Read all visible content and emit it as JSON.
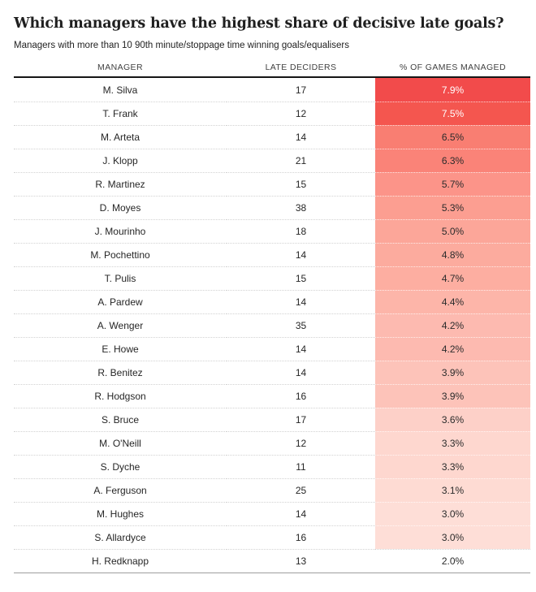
{
  "title": "Which managers have the highest share of decisive late goals?",
  "subtitle": "Managers with more than 10 90th minute/stoppage time winning goals/equalisers",
  "table": {
    "columns": [
      "MANAGER",
      "LATE DECIDERS",
      "% OF GAMES MANAGED"
    ],
    "rows": [
      {
        "manager": "M. Silva",
        "late_deciders": "17",
        "pct": "7.9%",
        "bg": "#f24b4b",
        "fg": "#ffffff"
      },
      {
        "manager": "T. Frank",
        "late_deciders": "12",
        "pct": "7.5%",
        "bg": "#f4564f",
        "fg": "#ffffff"
      },
      {
        "manager": "M. Arteta",
        "late_deciders": "14",
        "pct": "6.5%",
        "bg": "#f97e72",
        "fg": "#2b2b2b"
      },
      {
        "manager": "J. Klopp",
        "late_deciders": "21",
        "pct": "6.3%",
        "bg": "#fa8378",
        "fg": "#2b2b2b"
      },
      {
        "manager": "R. Martinez",
        "late_deciders": "15",
        "pct": "5.7%",
        "bg": "#fc9489",
        "fg": "#2b2b2b"
      },
      {
        "manager": "D. Moyes",
        "late_deciders": "38",
        "pct": "5.3%",
        "bg": "#fc9e91",
        "fg": "#2b2b2b"
      },
      {
        "manager": "J. Mourinho",
        "late_deciders": "18",
        "pct": "5.0%",
        "bg": "#fca699",
        "fg": "#2b2b2b"
      },
      {
        "manager": "M. Pochettino",
        "late_deciders": "14",
        "pct": "4.8%",
        "bg": "#fcab9e",
        "fg": "#2b2b2b"
      },
      {
        "manager": "T. Pulis",
        "late_deciders": "15",
        "pct": "4.7%",
        "bg": "#fdaea1",
        "fg": "#2b2b2b"
      },
      {
        "manager": "A. Pardew",
        "late_deciders": "14",
        "pct": "4.4%",
        "bg": "#fdb5a9",
        "fg": "#2b2b2b"
      },
      {
        "manager": "A. Wenger",
        "late_deciders": "35",
        "pct": "4.2%",
        "bg": "#fdbab0",
        "fg": "#2b2b2b"
      },
      {
        "manager": "E. Howe",
        "late_deciders": "14",
        "pct": "4.2%",
        "bg": "#fdbab0",
        "fg": "#2b2b2b"
      },
      {
        "manager": "R. Benitez",
        "late_deciders": "14",
        "pct": "3.9%",
        "bg": "#fdc3b9",
        "fg": "#2b2b2b"
      },
      {
        "manager": "R. Hodgson",
        "late_deciders": "16",
        "pct": "3.9%",
        "bg": "#fdc3b9",
        "fg": "#2b2b2b"
      },
      {
        "manager": "S. Bruce",
        "late_deciders": "17",
        "pct": "3.6%",
        "bg": "#fdd0c8",
        "fg": "#2b2b2b"
      },
      {
        "manager": "M. O'Neill",
        "late_deciders": "12",
        "pct": "3.3%",
        "bg": "#fed7cf",
        "fg": "#2b2b2b"
      },
      {
        "manager": "S. Dyche",
        "late_deciders": "11",
        "pct": "3.3%",
        "bg": "#fed7cf",
        "fg": "#2b2b2b"
      },
      {
        "manager": "A. Ferguson",
        "late_deciders": "25",
        "pct": "3.1%",
        "bg": "#fedbd3",
        "fg": "#2b2b2b"
      },
      {
        "manager": "M. Hughes",
        "late_deciders": "14",
        "pct": "3.0%",
        "bg": "#feded7",
        "fg": "#2b2b2b"
      },
      {
        "manager": "S. Allardyce",
        "late_deciders": "16",
        "pct": "3.0%",
        "bg": "#feded7",
        "fg": "#2b2b2b"
      },
      {
        "manager": "H. Redknapp",
        "late_deciders": "13",
        "pct": "2.0%",
        "bg": null,
        "fg": "#2b2b2b"
      }
    ]
  },
  "colors": {
    "heat_high": "#f24b4b",
    "heat_low": "#ffffff",
    "header_rule": "#161616",
    "bottom_rule": "#9e9e9e",
    "row_divider": "#d2d2d2",
    "text": "#1f1f1f"
  },
  "chart_data": {
    "type": "table",
    "title": "Which managers have the highest share of decisive late goals?",
    "subtitle": "Managers with more than 10 90th minute/stoppage time winning goals/equalisers",
    "columns": [
      "Manager",
      "Late deciders",
      "% of games managed"
    ],
    "categories": [
      "M. Silva",
      "T. Frank",
      "M. Arteta",
      "J. Klopp",
      "R. Martinez",
      "D. Moyes",
      "J. Mourinho",
      "M. Pochettino",
      "T. Pulis",
      "A. Pardew",
      "A. Wenger",
      "E. Howe",
      "R. Benitez",
      "R. Hodgson",
      "S. Bruce",
      "M. O'Neill",
      "S. Dyche",
      "A. Ferguson",
      "M. Hughes",
      "S. Allardyce",
      "H. Redknapp"
    ],
    "series": [
      {
        "name": "Late deciders",
        "values": [
          17,
          12,
          14,
          21,
          15,
          38,
          18,
          14,
          15,
          14,
          35,
          14,
          14,
          16,
          17,
          12,
          11,
          25,
          14,
          16,
          13
        ]
      },
      {
        "name": "% of games managed",
        "values": [
          7.9,
          7.5,
          6.5,
          6.3,
          5.7,
          5.3,
          5.0,
          4.8,
          4.7,
          4.4,
          4.2,
          4.2,
          3.9,
          3.9,
          3.6,
          3.3,
          3.3,
          3.1,
          3.0,
          3.0,
          2.0
        ]
      }
    ],
    "heatmap_column": "% of games managed",
    "heatmap_range": [
      2.0,
      7.9
    ],
    "sort": "descending by % of games managed"
  }
}
